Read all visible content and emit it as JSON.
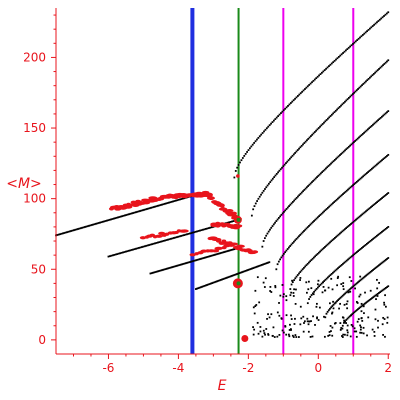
{
  "chart_data": {
    "type": "scatter",
    "title": "",
    "xlabel": "E",
    "ylabel": "<M>",
    "xlim": [
      -7.5,
      2.05
    ],
    "ylim": [
      -10,
      235
    ],
    "xticks": [
      -6,
      -4,
      -2,
      0,
      2
    ],
    "yticks": [
      0,
      50,
      100,
      150,
      200
    ],
    "grid": false,
    "colors": {
      "axis": "#e8141c",
      "points_black": "#000000",
      "points_red": "#e8141c",
      "blue_line": "#1f2fe0",
      "green_line": "#1a8a1a",
      "magenta_line": "#ee00ee"
    },
    "vertical_lines": [
      {
        "x": -3.6,
        "color": "#1f2fe0",
        "width": 4
      },
      {
        "x": -2.28,
        "color": "#1a8a1a",
        "width": 2
      },
      {
        "x": -1.0,
        "color": "#ee00ee",
        "width": 2
      },
      {
        "x": 1.0,
        "color": "#ee00ee",
        "width": 2
      }
    ],
    "black_bands": [
      {
        "x0": -7.5,
        "y0": 74,
        "x1": -3.6,
        "y1": 102,
        "n": 100,
        "curve": 0
      },
      {
        "x0": -6.0,
        "y0": 59,
        "x1": -2.3,
        "y1": 85,
        "n": 90,
        "curve": 0
      },
      {
        "x0": -4.8,
        "y0": 47,
        "x1": -2.3,
        "y1": 65,
        "n": 70,
        "curve": 0
      },
      {
        "x0": -3.5,
        "y0": 36,
        "x1": -1.4,
        "y1": 55,
        "n": 60,
        "curve": 0
      },
      {
        "x0": -2.4,
        "y0": 115,
        "x1": 2.0,
        "y1": 232,
        "n": 110,
        "curve": -18
      },
      {
        "x0": -1.9,
        "y0": 88,
        "x1": 2.0,
        "y1": 198,
        "n": 105,
        "curve": -14
      },
      {
        "x0": -1.6,
        "y0": 66,
        "x1": 2.0,
        "y1": 162,
        "n": 100,
        "curve": -12
      },
      {
        "x0": -1.2,
        "y0": 50,
        "x1": 2.0,
        "y1": 131,
        "n": 90,
        "curve": -10
      },
      {
        "x0": -0.8,
        "y0": 36,
        "x1": 2.0,
        "y1": 104,
        "n": 80,
        "curve": -8
      },
      {
        "x0": -0.3,
        "y0": 26,
        "x1": 2.0,
        "y1": 80,
        "n": 65,
        "curve": -6
      },
      {
        "x0": 0.2,
        "y0": 16,
        "x1": 2.0,
        "y1": 58,
        "n": 55,
        "curve": -4
      },
      {
        "x0": 0.7,
        "y0": 10,
        "x1": 2.0,
        "y1": 38,
        "n": 40,
        "curve": -3
      }
    ],
    "black_scatter_region": {
      "x0": -1.9,
      "x1": 2.0,
      "y0": 2,
      "y1": 45,
      "n": 230
    },
    "red_bands": [
      {
        "x0": -5.9,
        "y0": 93,
        "x1": -4.4,
        "y1": 101,
        "n": 40,
        "jitter": 1.5
      },
      {
        "x0": -4.4,
        "y0": 101,
        "x1": -3.2,
        "y1": 103,
        "n": 35,
        "jitter": 1.2
      },
      {
        "x0": -3.2,
        "y0": 103,
        "x1": -2.3,
        "y1": 86,
        "n": 35,
        "jitter": 1.5
      },
      {
        "x0": -3.0,
        "y0": 82,
        "x1": -2.3,
        "y1": 80,
        "n": 20,
        "jitter": 1.0
      },
      {
        "x0": -5.0,
        "y0": 72,
        "x1": -3.8,
        "y1": 78,
        "n": 15,
        "jitter": 1.0
      },
      {
        "x0": -3.1,
        "y0": 72,
        "x1": -1.8,
        "y1": 62,
        "n": 20,
        "jitter": 1.2
      },
      {
        "x0": -3.6,
        "y0": 60,
        "x1": -2.6,
        "y1": 66,
        "n": 10,
        "jitter": 1.0
      }
    ],
    "red_blobs": [
      {
        "x": -2.3,
        "y": 85,
        "r": 4
      },
      {
        "x": -2.3,
        "y": 40,
        "r": 5
      },
      {
        "x": -2.1,
        "y": 1,
        "r": 3.5
      },
      {
        "x": -2.3,
        "y": 116,
        "r": 1.8
      }
    ],
    "green_dots": [
      {
        "x": -2.28,
        "y": 85,
        "r": 2
      },
      {
        "x": -2.28,
        "y": 40,
        "r": 2
      }
    ]
  }
}
